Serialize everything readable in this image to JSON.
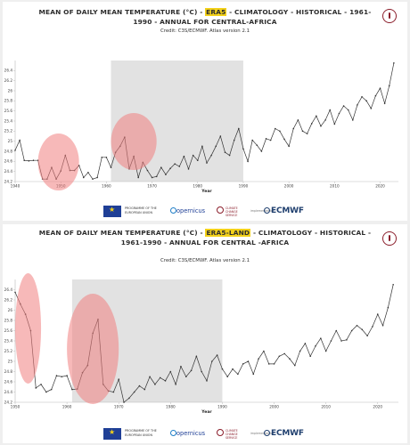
{
  "charts": [
    {
      "title_pre": "MEAN OF DAILY MEAN TEMPERATURE (°C) - ",
      "title_highlight": "ERA5",
      "title_post": " - CLIMATOLOGY - HISTORICAL - 1961-1990 - ANNUAL FOR CENTRAL-AFRICA",
      "credit": "Credit: C3S/ECMWF. Atlas version 2.1"
    },
    {
      "title_pre": "MEAN OF DAILY MEAN TEMPERATURE (°C) - ",
      "title_highlight": "ERA5-LAND",
      "title_post": " - CLIMATOLOGY - HISTORICAL - 1961-1990 - ANNUAL FOR CENTRAL -AFRICA",
      "credit": "Credit: C3S/ECMWF. Atlas version 2.1"
    }
  ],
  "footer": {
    "eu_text": "PROGRAMME OF THE EUROPEAN UNION",
    "copernicus": "opernicus",
    "c3s_text": "CLIMATE CHANGE SERVICE",
    "impl_text": "implemented by",
    "ecmwf": "ECMWF"
  },
  "colors": {
    "highlight": "#f3d11a",
    "reference_band": "#e2e2e2",
    "highlight_circle": "#f08080",
    "line": "#333333",
    "brand": "#8b1e2b"
  },
  "icons": [
    "thermometer-logo-icon",
    "eu-flag-icon",
    "copernicus-icon",
    "c3s-icon",
    "ecmwf-icon"
  ],
  "chart_data": [
    {
      "type": "line",
      "xlabel": "Year",
      "ylabel": "",
      "xlim": [
        1940,
        2024
      ],
      "ylim": [
        24.2,
        26.6
      ],
      "x_ticks": [
        1940,
        1950,
        1960,
        1970,
        1980,
        1990,
        2000,
        2010,
        2020
      ],
      "y_ticks": [
        24.2,
        24.4,
        24.6,
        24.8,
        25.0,
        25.2,
        25.4,
        25.6,
        25.8,
        26.0,
        26.2,
        26.4
      ],
      "y_tick_labels": [
        "24.2",
        "24.4",
        "24.6",
        "24.8",
        "25",
        "25.2",
        "25.4",
        "25.6",
        "25.8",
        "26",
        "26.2",
        "26.4"
      ],
      "reference_period": [
        1961,
        1990
      ],
      "highlight_regions": [
        [
          1945,
          1954
        ],
        [
          1961,
          1971
        ]
      ],
      "x": [
        1940,
        1941,
        1942,
        1943,
        1944,
        1945,
        1946,
        1947,
        1948,
        1949,
        1950,
        1951,
        1952,
        1953,
        1954,
        1955,
        1956,
        1957,
        1958,
        1959,
        1960,
        1961,
        1962,
        1963,
        1964,
        1965,
        1966,
        1967,
        1968,
        1969,
        1970,
        1971,
        1972,
        1973,
        1974,
        1975,
        1976,
        1977,
        1978,
        1979,
        1980,
        1981,
        1982,
        1983,
        1984,
        1985,
        1986,
        1987,
        1988,
        1989,
        1990,
        1991,
        1992,
        1993,
        1994,
        1995,
        1996,
        1997,
        1998,
        1999,
        2000,
        2001,
        2002,
        2003,
        2004,
        2005,
        2006,
        2007,
        2008,
        2009,
        2010,
        2011,
        2012,
        2013,
        2014,
        2015,
        2016,
        2017,
        2018,
        2019,
        2020,
        2021,
        2022,
        2023
      ],
      "values": [
        24.82,
        25.02,
        24.62,
        24.61,
        24.62,
        24.62,
        24.25,
        24.25,
        24.48,
        24.25,
        24.41,
        24.72,
        24.42,
        24.42,
        24.52,
        24.28,
        24.38,
        24.25,
        24.28,
        24.68,
        24.68,
        24.48,
        24.78,
        24.9,
        25.08,
        24.45,
        24.7,
        24.28,
        24.58,
        24.42,
        24.28,
        24.3,
        24.48,
        24.34,
        24.46,
        24.55,
        24.5,
        24.7,
        24.45,
        24.72,
        24.62,
        24.9,
        24.57,
        24.72,
        24.9,
        25.1,
        24.78,
        24.72,
        25.02,
        25.25,
        24.85,
        24.6,
        25.02,
        24.92,
        24.8,
        25.05,
        25.02,
        25.25,
        25.2,
        25.04,
        24.9,
        25.25,
        25.42,
        25.2,
        25.15,
        25.35,
        25.5,
        25.3,
        25.42,
        25.62,
        25.34,
        25.55,
        25.7,
        25.62,
        25.42,
        25.72,
        25.88,
        25.8,
        25.65,
        25.9,
        26.05,
        25.75,
        26.1,
        26.55
      ]
    },
    {
      "type": "line",
      "xlabel": "Year",
      "ylabel": "",
      "xlim": [
        1950,
        2024
      ],
      "ylim": [
        24.2,
        26.6
      ],
      "x_ticks": [
        1950,
        1960,
        1970,
        1980,
        1990,
        2000,
        2010,
        2020
      ],
      "y_ticks": [
        24.2,
        24.4,
        24.6,
        24.8,
        25.0,
        25.2,
        25.4,
        25.6,
        25.8,
        26.0,
        26.2,
        26.4
      ],
      "y_tick_labels": [
        "24.2",
        "24.4",
        "24.6",
        "24.8",
        "25",
        "25.2",
        "25.4",
        "25.6",
        "25.8",
        "26",
        "26.2",
        "26.4"
      ],
      "reference_period": [
        1961,
        1990
      ],
      "highlight_regions": [
        [
          1950,
          1955
        ],
        [
          1960,
          1970
        ]
      ],
      "x": [
        1950,
        1951,
        1952,
        1953,
        1954,
        1955,
        1956,
        1957,
        1958,
        1959,
        1960,
        1961,
        1962,
        1963,
        1964,
        1965,
        1966,
        1967,
        1968,
        1969,
        1970,
        1971,
        1972,
        1973,
        1974,
        1975,
        1976,
        1977,
        1978,
        1979,
        1980,
        1981,
        1982,
        1983,
        1984,
        1985,
        1986,
        1987,
        1988,
        1989,
        1990,
        1991,
        1992,
        1993,
        1994,
        1995,
        1996,
        1997,
        1998,
        1999,
        2000,
        2001,
        2002,
        2003,
        2004,
        2005,
        2006,
        2007,
        2008,
        2009,
        2010,
        2011,
        2012,
        2013,
        2014,
        2015,
        2016,
        2017,
        2018,
        2019,
        2020,
        2021,
        2022,
        2023
      ],
      "values": [
        26.35,
        26.12,
        25.92,
        25.6,
        24.48,
        24.55,
        24.4,
        24.45,
        24.72,
        24.7,
        24.72,
        24.45,
        24.46,
        24.78,
        24.92,
        25.55,
        25.82,
        24.55,
        24.42,
        24.4,
        24.65,
        24.2,
        24.28,
        24.4,
        24.52,
        24.45,
        24.7,
        24.55,
        24.68,
        24.62,
        24.8,
        24.55,
        24.9,
        24.7,
        24.82,
        25.1,
        24.8,
        24.62,
        25.0,
        25.12,
        24.85,
        24.7,
        24.85,
        24.75,
        24.95,
        25.0,
        24.75,
        25.05,
        25.2,
        24.95,
        24.95,
        25.1,
        25.15,
        25.05,
        24.92,
        25.2,
        25.35,
        25.1,
        25.3,
        25.45,
        25.2,
        25.4,
        25.6,
        25.4,
        25.42,
        25.6,
        25.7,
        25.62,
        25.5,
        25.68,
        25.92,
        25.7,
        26.05,
        26.5
      ]
    }
  ]
}
